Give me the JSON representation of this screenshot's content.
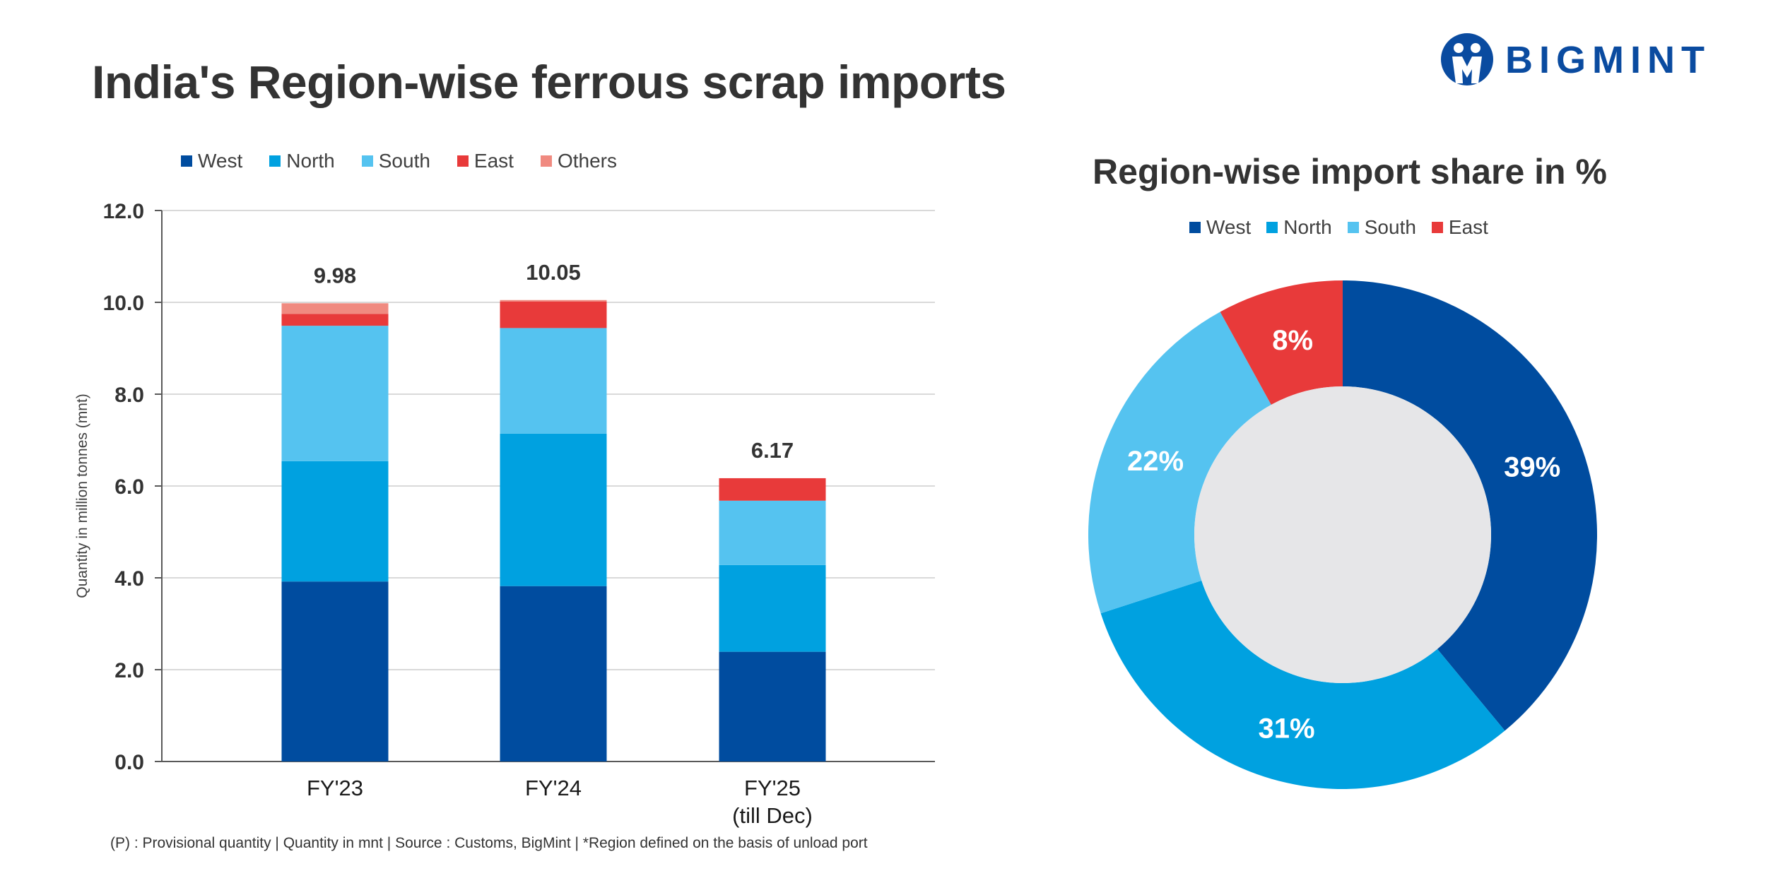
{
  "header": {
    "title": "India's Region-wise ferrous scrap imports"
  },
  "brand": {
    "name": "BIGMINT",
    "color": "#0A4BA0"
  },
  "colors": {
    "west": "#004C9F",
    "north": "#00A1E0",
    "south": "#55C3F0",
    "east": "#E83A3A",
    "others": "#F08A80",
    "donut_hole": "#E6E6E8",
    "grid": "#D9D9D9",
    "axis": "#595959"
  },
  "chart_data": [
    {
      "type": "bar",
      "stacked": true,
      "title": "",
      "xlabel": "",
      "ylabel": "Quantity in million tonnes (mnt)",
      "ylim": [
        0,
        12
      ],
      "yticks": [
        "0.0",
        "2.0",
        "4.0",
        "6.0",
        "8.0",
        "10.0",
        "12.0"
      ],
      "grid": true,
      "legend": "top-left",
      "categories": [
        "FY'23",
        "FY'24",
        "FY'25\n(till Dec)"
      ],
      "series": [
        {
          "name": "West",
          "values": [
            3.92,
            3.82,
            2.39
          ]
        },
        {
          "name": "North",
          "values": [
            2.62,
            3.32,
            1.89
          ]
        },
        {
          "name": "South",
          "values": [
            2.95,
            2.3,
            1.4
          ]
        },
        {
          "name": "East",
          "values": [
            0.26,
            0.58,
            0.49
          ]
        },
        {
          "name": "Others",
          "values": [
            0.23,
            0.03,
            0.0
          ]
        }
      ],
      "totals": [
        "9.98",
        "10.05",
        "6.17"
      ]
    },
    {
      "type": "pie",
      "donut": true,
      "title": "Region-wise import share in %",
      "legend": "top-center",
      "labels": [
        "West",
        "North",
        "South",
        "East"
      ],
      "values": [
        39,
        31,
        22,
        8
      ],
      "value_labels": [
        "39%",
        "31%",
        "22%",
        "8%"
      ]
    }
  ],
  "footnote": "(P) : Provisional quantity | Quantity in mnt | Source : Customs, BigMint | *Region defined on the basis of unload port"
}
